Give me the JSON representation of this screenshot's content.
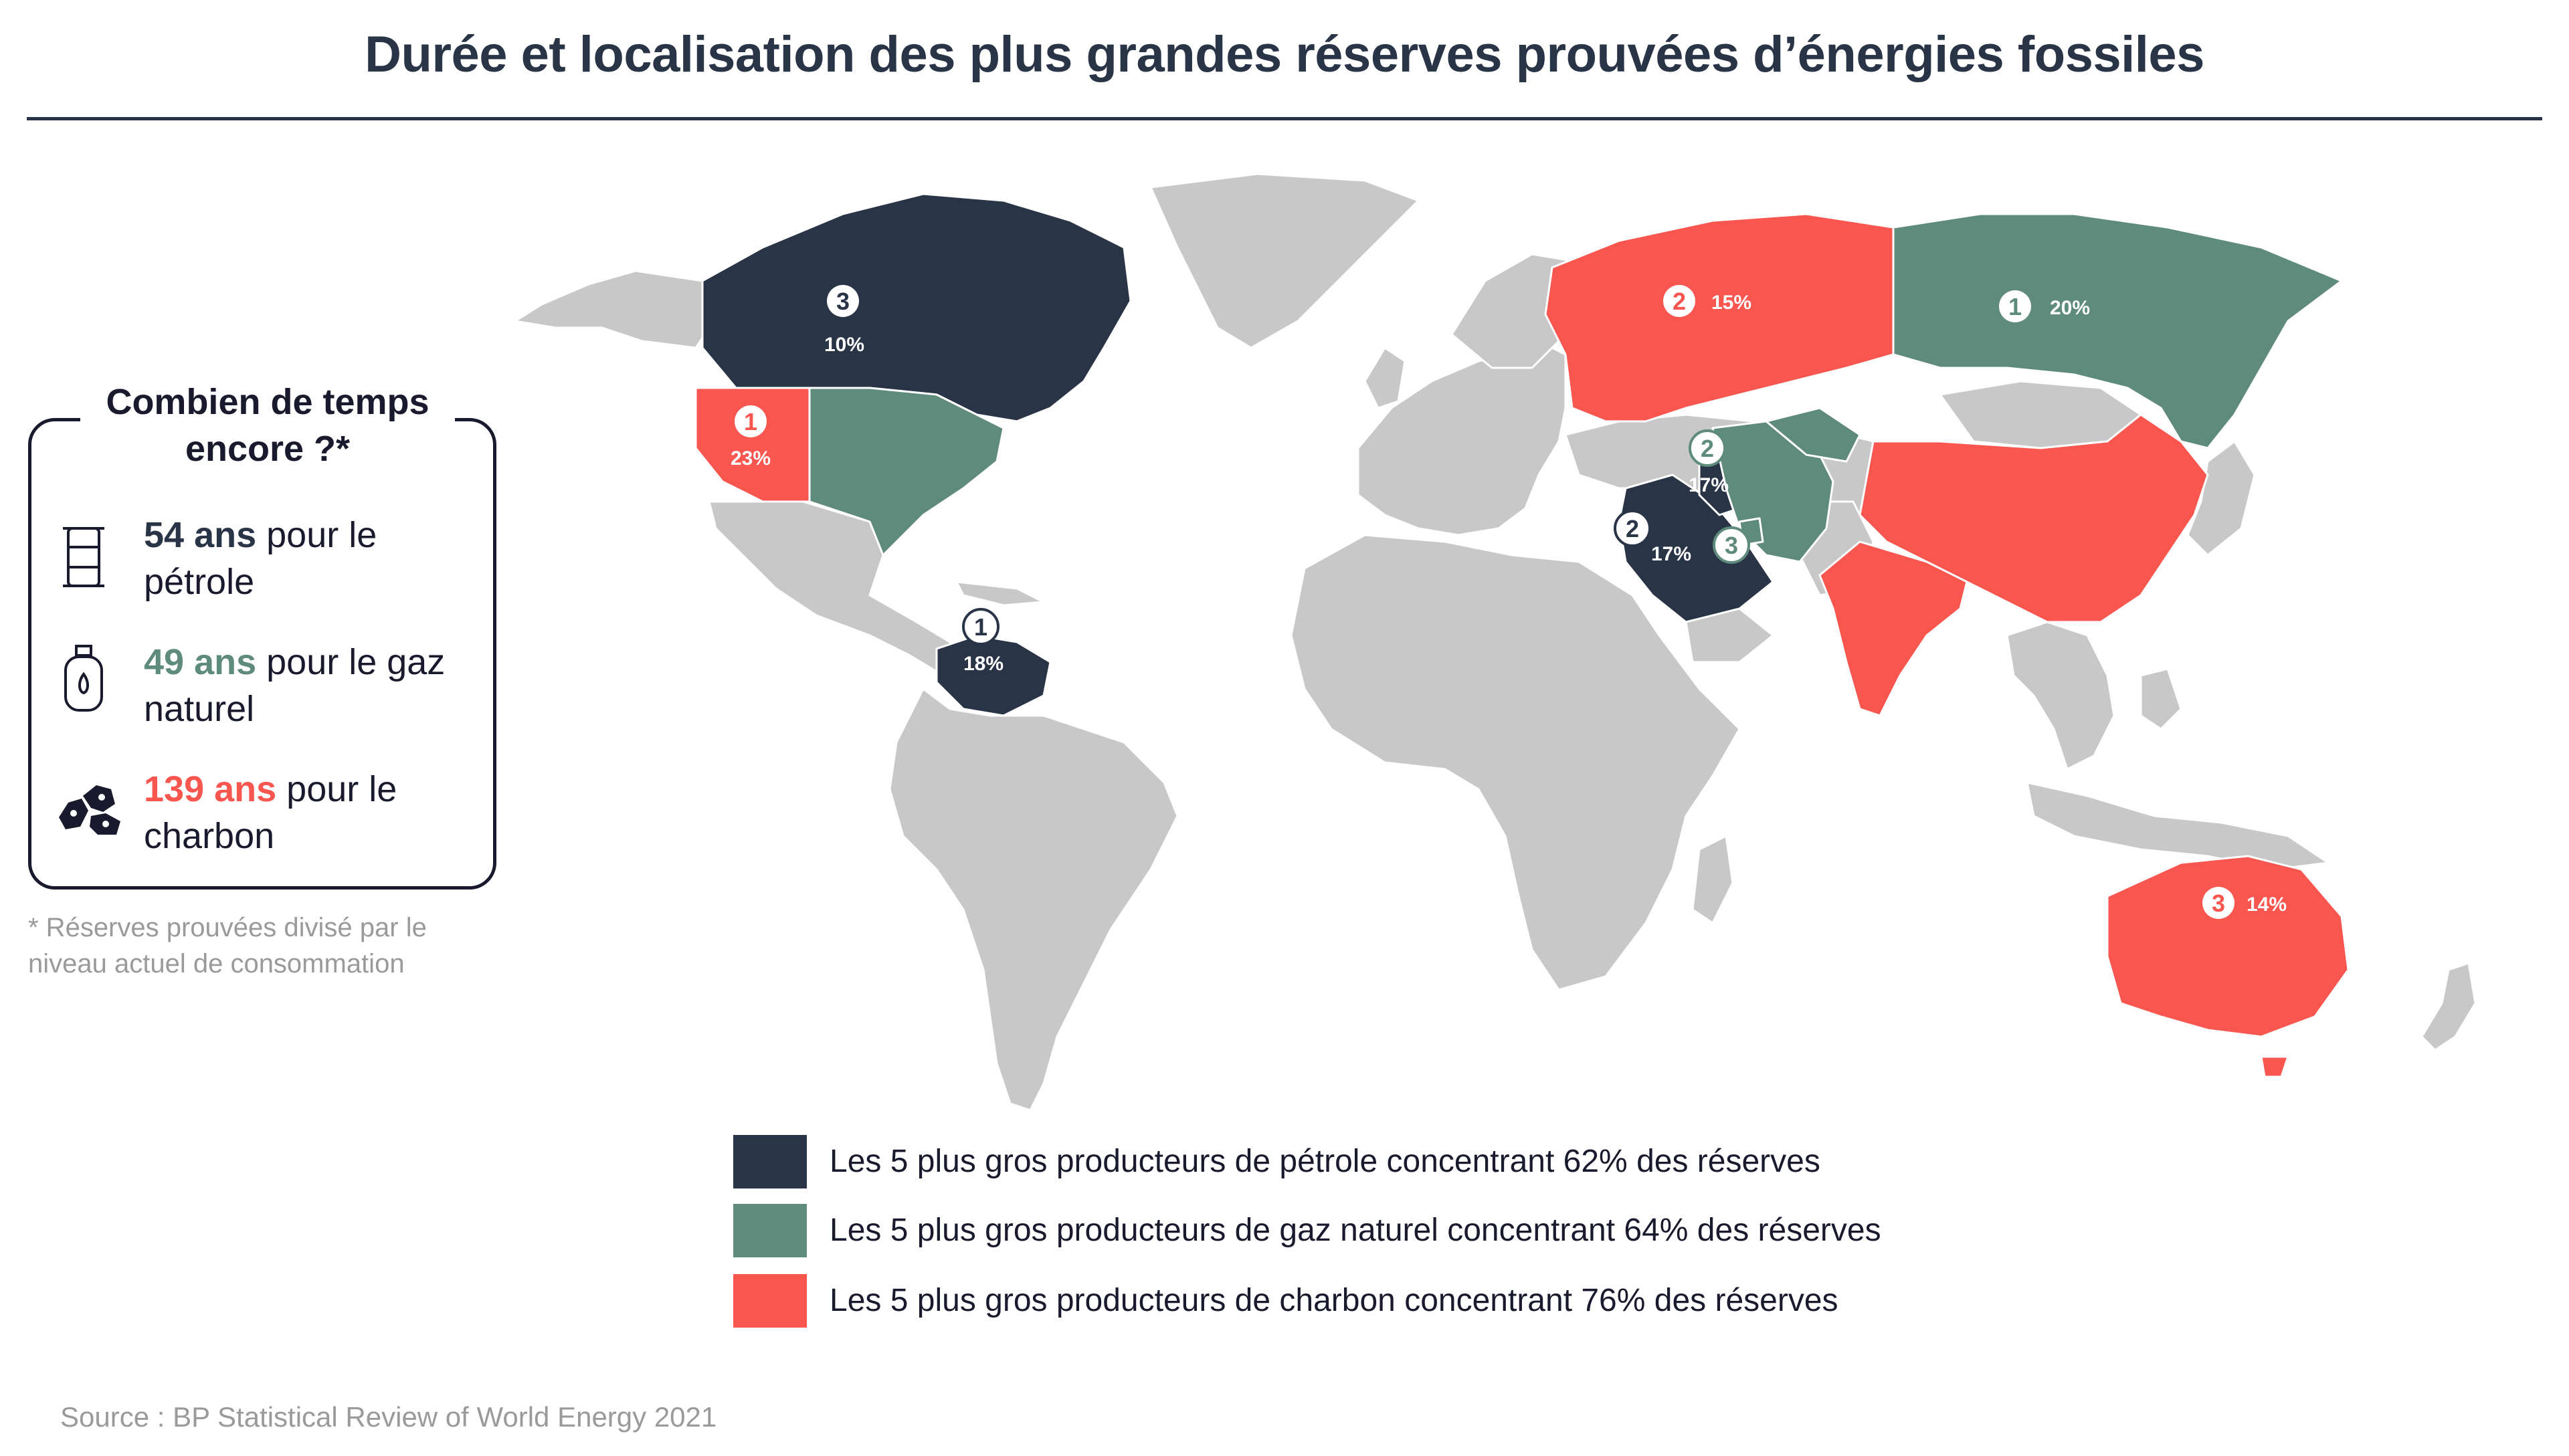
{
  "title": "Durée et localisation des plus grandes réserves prouvées d’énergies fossiles",
  "colors": {
    "land": "#c8c8c8",
    "border": "#ffffff",
    "oil": "#2a3447",
    "gas": "#5f8b7c",
    "coal": "#fa5650",
    "text": "#1a1a2e",
    "muted": "#9a9a9a"
  },
  "sidebar": {
    "title_line1": "Combien de temps",
    "title_line2": "encore ?*",
    "facts": [
      {
        "icon": "oil-barrel-icon",
        "value": "54 ans",
        "text_line1": " pour le",
        "text_line2": "pétrole",
        "color": "#2a3447"
      },
      {
        "icon": "gas-cylinder-icon",
        "value": "49 ans",
        "text_line1": " pour le gaz",
        "text_line2": "naturel",
        "color": "#5f8b7c"
      },
      {
        "icon": "coal-lumps-icon",
        "value": "139 ans",
        "text_line1": " pour le",
        "text_line2": "charbon",
        "color": "#fa5650"
      }
    ],
    "footnote_line1": "* Réserves prouvées divisé par le",
    "footnote_line2": "niveau actuel de consommation"
  },
  "labels": [
    {
      "id": "canada",
      "rank": "3",
      "pct": "10%",
      "category": "oil"
    },
    {
      "id": "usa",
      "rank": "1",
      "pct": "23%",
      "category": "coal"
    },
    {
      "id": "venezuela",
      "rank": "1",
      "pct": "18%",
      "category": "oil"
    },
    {
      "id": "russia",
      "rank": "2",
      "pct": "15%",
      "category": "coal"
    },
    {
      "id": "russia-east",
      "rank": "1",
      "pct": "20%",
      "category": "gas"
    },
    {
      "id": "iran",
      "rank": "2",
      "pct": "17%",
      "category": "gas"
    },
    {
      "id": "saudi",
      "rank": "2",
      "pct": "17%",
      "category": "oil"
    },
    {
      "id": "qatar",
      "rank": "3",
      "pct": "",
      "category": "gas"
    },
    {
      "id": "australia",
      "rank": "3",
      "pct": "14%",
      "category": "coal"
    }
  ],
  "legend": [
    {
      "key": "oil",
      "color": "#2a3447",
      "label": "Les 5 plus gros producteurs de pétrole concentrant 62% des réserves"
    },
    {
      "key": "gas",
      "color": "#5f8b7c",
      "label": "Les 5 plus gros producteurs de gaz naturel concentrant 64% des réserves"
    },
    {
      "key": "coal",
      "color": "#fa5650",
      "label": "Les 5 plus gros producteurs de charbon concentrant 76% des réserves"
    }
  ],
  "source": "Source : BP Statistical Review of World Energy 2021"
}
